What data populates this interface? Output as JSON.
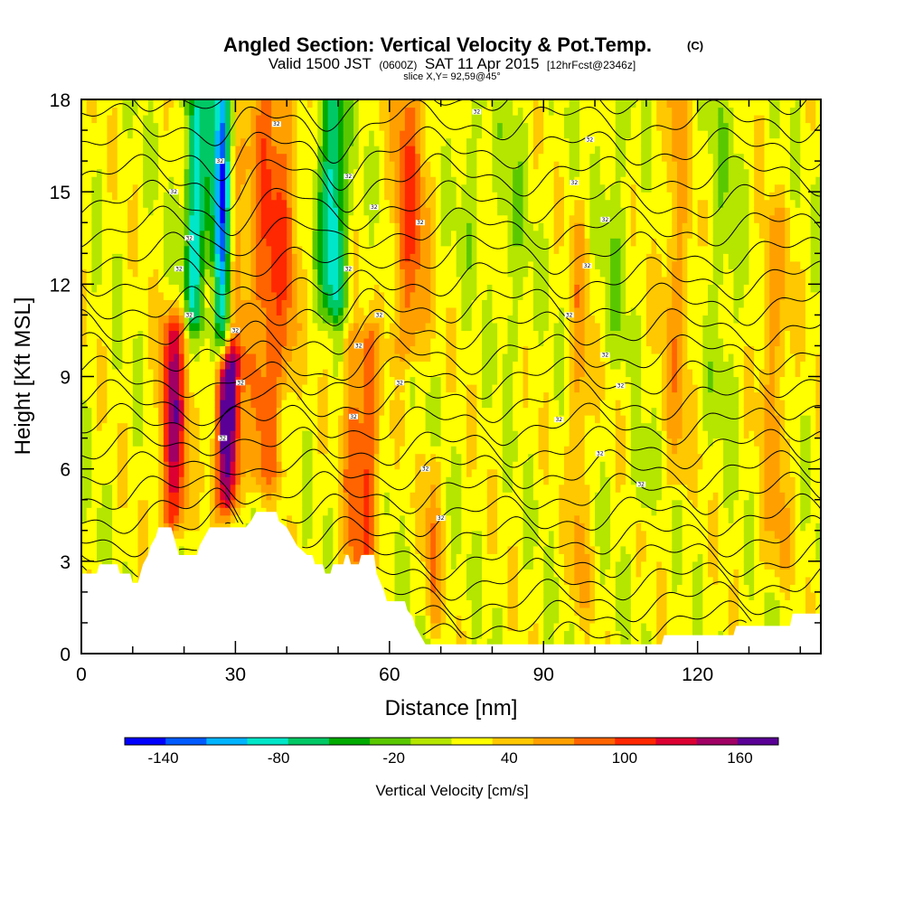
{
  "chart_data": {
    "type": "heatmap",
    "title": "Angled Section: Vertical Velocity & Pot.Temp.",
    "title_units": "(C)",
    "subtitle": {
      "valid": "Valid 1500 JST",
      "zulu": "(0600Z)",
      "date": "SAT 11 Apr 2015",
      "forecast": "[12hrFcst@2346z]"
    },
    "slice_label": "slice X,Y= 92,59@45°",
    "xlabel": "Distance [nm]",
    "ylabel": "Height [Kft MSL]",
    "xlim": [
      0,
      144
    ],
    "ylim": [
      0,
      18
    ],
    "x_ticks": [
      0,
      30,
      60,
      90,
      120
    ],
    "y_ticks": [
      0,
      3,
      6,
      9,
      12,
      15,
      18
    ],
    "colorbar": {
      "title": "Vertical Velocity [cm/s]",
      "min": -160,
      "max": 180,
      "step": 20,
      "tick_labels": [
        -140,
        -80,
        -20,
        40,
        100,
        160
      ],
      "colors": [
        "#0000ff",
        "#005aff",
        "#00b4ff",
        "#00e6c8",
        "#00c864",
        "#00aa00",
        "#5ac800",
        "#b4e600",
        "#ffff00",
        "#ffc800",
        "#ffa000",
        "#ff6400",
        "#ff2800",
        "#dc0032",
        "#a00064",
        "#5a0096"
      ]
    },
    "vertical_velocity_features": [
      {
        "x": 18,
        "ztop": 10.5,
        "zbot": 4.5,
        "peak": 120,
        "width": 2.5
      },
      {
        "x": 22,
        "ztop": 18,
        "zbot": 11,
        "peak": -100,
        "width": 1.8
      },
      {
        "x": 25,
        "ztop": 18,
        "zbot": 13,
        "peak": -60,
        "width": 2
      },
      {
        "x": 28.5,
        "ztop": 9.5,
        "zbot": 5.2,
        "peak": 175,
        "width": 2.2
      },
      {
        "x": 27.5,
        "ztop": 18,
        "zbot": 10,
        "peak": -130,
        "width": 1.6
      },
      {
        "x": 30.5,
        "ztop": 16,
        "zbot": 9.5,
        "peak": 40,
        "width": 2
      },
      {
        "x": 36,
        "ztop": 18,
        "zbot": 6,
        "peak": 70,
        "width": 3.5
      },
      {
        "x": 40,
        "ztop": 18,
        "zbot": 9,
        "peak": 40,
        "width": 2.5
      },
      {
        "x": 49,
        "ztop": 18,
        "zbot": 11.5,
        "peak": -110,
        "width": 2.5
      },
      {
        "x": 53,
        "ztop": 10,
        "zbot": 3,
        "peak": 60,
        "width": 2
      },
      {
        "x": 56,
        "ztop": 10,
        "zbot": 3.5,
        "peak": 70,
        "width": 2
      },
      {
        "x": 64,
        "ztop": 18,
        "zbot": 10,
        "peak": 70,
        "width": 3.5
      },
      {
        "x": 68.5,
        "ztop": 6,
        "zbot": 1.5,
        "peak": 50,
        "width": 1.5
      },
      {
        "x": 76,
        "ztop": 18,
        "zbot": 13,
        "peak": -20,
        "width": 2.5
      },
      {
        "x": 84,
        "ztop": 18,
        "zbot": 10,
        "peak": -20,
        "width": 3
      },
      {
        "x": 97,
        "ztop": 14,
        "zbot": 2,
        "peak": 40,
        "width": 2
      },
      {
        "x": 104,
        "ztop": 18,
        "zbot": 10,
        "peak": -20,
        "width": 2.5
      },
      {
        "x": 109,
        "ztop": 6.5,
        "zbot": 5,
        "peak": -40,
        "width": 1.5
      },
      {
        "x": 116,
        "ztop": 18,
        "zbot": 6,
        "peak": 40,
        "width": 3
      },
      {
        "x": 125,
        "ztop": 18,
        "zbot": 8,
        "peak": -20,
        "width": 3.5
      },
      {
        "x": 135,
        "ztop": 14,
        "zbot": 3,
        "peak": 40,
        "width": 3
      }
    ],
    "terrain": [
      [
        0,
        2.6
      ],
      [
        3,
        2.6
      ],
      [
        3.5,
        2.9
      ],
      [
        7,
        2.9
      ],
      [
        7.5,
        2.6
      ],
      [
        9.5,
        2.6
      ],
      [
        10,
        2.3
      ],
      [
        11,
        2.3
      ],
      [
        11.5,
        2.6
      ],
      [
        12,
        2.9
      ],
      [
        13,
        3.2
      ],
      [
        13.5,
        3.5
      ],
      [
        14.5,
        3.8
      ],
      [
        15,
        4.1
      ],
      [
        17.5,
        4.1
      ],
      [
        18,
        3.8
      ],
      [
        18.5,
        3.5
      ],
      [
        19,
        3.2
      ],
      [
        22.5,
        3.2
      ],
      [
        23,
        3.5
      ],
      [
        24,
        3.8
      ],
      [
        25,
        4.1
      ],
      [
        32,
        4.1
      ],
      [
        33,
        4.3
      ],
      [
        34,
        4.6
      ],
      [
        38,
        4.6
      ],
      [
        38.5,
        4.3
      ],
      [
        40,
        4.1
      ],
      [
        41,
        3.8
      ],
      [
        42,
        3.5
      ],
      [
        44,
        3.2
      ],
      [
        45,
        3.2
      ],
      [
        45.5,
        2.9
      ],
      [
        47,
        2.9
      ],
      [
        47.5,
        2.6
      ],
      [
        48.5,
        2.6
      ],
      [
        49,
        2.9
      ],
      [
        51,
        2.9
      ],
      [
        51.5,
        3.2
      ],
      [
        52,
        3.2
      ],
      [
        52.5,
        2.9
      ],
      [
        54,
        2.9
      ],
      [
        54.5,
        3.2
      ],
      [
        57,
        3.2
      ],
      [
        57.5,
        2.6
      ],
      [
        59,
        2.0
      ],
      [
        59.5,
        1.7
      ],
      [
        63,
        1.7
      ],
      [
        63.5,
        1.4
      ],
      [
        64.5,
        1.2
      ],
      [
        65,
        0.9
      ],
      [
        66,
        0.6
      ],
      [
        67,
        0.3
      ],
      [
        113,
        0.3
      ],
      [
        113.5,
        0.6
      ],
      [
        127,
        0.6
      ],
      [
        127.5,
        0.9
      ],
      [
        138,
        0.9
      ],
      [
        138.5,
        1.3
      ],
      [
        144,
        1.3
      ]
    ],
    "potential_temperature": {
      "contour_count": 28,
      "label_text": "32",
      "labels_along_contours": [
        [
          18,
          15
        ],
        [
          21,
          13.5
        ],
        [
          19,
          12.5
        ],
        [
          21,
          11
        ],
        [
          30,
          10.5
        ],
        [
          31,
          8.8
        ],
        [
          27.5,
          7
        ],
        [
          38,
          17.2
        ],
        [
          27,
          16
        ],
        [
          52,
          15.5
        ],
        [
          57,
          14.5
        ],
        [
          66,
          14
        ],
        [
          52,
          12.5
        ],
        [
          58,
          11
        ],
        [
          54,
          10
        ],
        [
          62,
          8.8
        ],
        [
          53,
          7.7
        ],
        [
          67,
          6
        ],
        [
          70,
          4.4
        ],
        [
          77,
          17.6
        ],
        [
          99,
          16.7
        ],
        [
          96,
          15.3
        ],
        [
          102,
          14.1
        ],
        [
          98.5,
          12.6
        ],
        [
          95,
          11
        ],
        [
          102,
          9.7
        ],
        [
          105,
          8.7
        ],
        [
          93,
          7.6
        ],
        [
          101,
          6.5
        ],
        [
          109,
          5.5
        ]
      ]
    }
  }
}
